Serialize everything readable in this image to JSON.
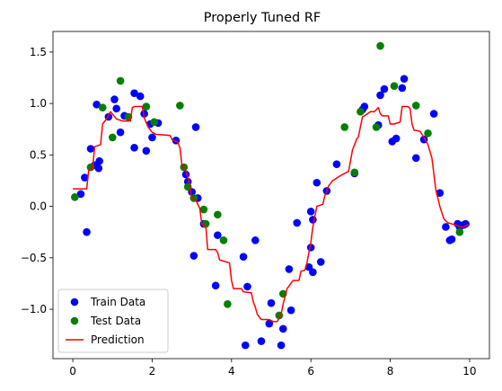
{
  "chart_data": {
    "type": "scatter",
    "title": "Properly Tuned RF",
    "xlabel": "",
    "ylabel": "",
    "xlim": [
      -0.5,
      10.5
    ],
    "ylim": [
      -1.48,
      1.7
    ],
    "xticks": [
      0,
      2,
      4,
      6,
      8,
      10
    ],
    "yticks": [
      -1.0,
      -0.5,
      0.0,
      0.5,
      1.0,
      1.5
    ],
    "xtick_labels": [
      "0",
      "2",
      "4",
      "6",
      "8",
      "10"
    ],
    "ytick_labels": [
      "−1.0",
      "−0.5",
      "0.0",
      "0.5",
      "1.0",
      "1.5"
    ],
    "grid": false,
    "legend_position": "lower-left",
    "series": [
      {
        "name": "Train Data",
        "kind": "scatter",
        "color": "#0000ff",
        "points": [
          [
            0.2,
            0.12
          ],
          [
            0.3,
            0.28
          ],
          [
            0.35,
            -0.25
          ],
          [
            0.45,
            0.56
          ],
          [
            0.55,
            0.4
          ],
          [
            0.6,
            0.99
          ],
          [
            0.65,
            0.37
          ],
          [
            0.67,
            0.44
          ],
          [
            0.9,
            0.87
          ],
          [
            1.05,
            1.04
          ],
          [
            1.1,
            0.95
          ],
          [
            1.2,
            0.72
          ],
          [
            1.3,
            0.88
          ],
          [
            1.55,
            0.57
          ],
          [
            1.55,
            1.1
          ],
          [
            1.7,
            1.07
          ],
          [
            1.8,
            0.9
          ],
          [
            1.85,
            0.54
          ],
          [
            1.95,
            0.8
          ],
          [
            2.0,
            0.67
          ],
          [
            2.15,
            0.81
          ],
          [
            2.6,
            0.64
          ],
          [
            2.85,
            0.31
          ],
          [
            2.9,
            0.24
          ],
          [
            3.0,
            0.14
          ],
          [
            3.05,
            -0.48
          ],
          [
            3.1,
            0.77
          ],
          [
            3.15,
            0.08
          ],
          [
            3.3,
            -0.17
          ],
          [
            3.6,
            -0.77
          ],
          [
            3.65,
            -0.28
          ],
          [
            4.3,
            -0.49
          ],
          [
            4.35,
            -1.35
          ],
          [
            4.4,
            -0.78
          ],
          [
            4.6,
            -0.33
          ],
          [
            4.75,
            -1.31
          ],
          [
            4.95,
            -1.14
          ],
          [
            5.0,
            -0.94
          ],
          [
            5.25,
            -1.35
          ],
          [
            5.3,
            -1.19
          ],
          [
            5.45,
            -0.61
          ],
          [
            5.5,
            -1.01
          ],
          [
            5.65,
            -0.16
          ],
          [
            5.95,
            -0.59
          ],
          [
            6.0,
            -0.05
          ],
          [
            6.0,
            -0.4
          ],
          [
            6.05,
            -0.64
          ],
          [
            6.05,
            -0.13
          ],
          [
            6.15,
            0.23
          ],
          [
            6.25,
            -0.54
          ],
          [
            6.4,
            0.15
          ],
          [
            6.65,
            0.41
          ],
          [
            7.1,
            0.32
          ],
          [
            7.3,
            0.94
          ],
          [
            7.35,
            0.97
          ],
          [
            7.7,
            0.79
          ],
          [
            7.75,
            1.08
          ],
          [
            7.85,
            1.14
          ],
          [
            8.05,
            0.63
          ],
          [
            8.15,
            0.66
          ],
          [
            8.3,
            1.15
          ],
          [
            8.35,
            1.24
          ],
          [
            8.65,
            0.47
          ],
          [
            8.85,
            0.65
          ],
          [
            9.1,
            0.9
          ],
          [
            9.25,
            0.13
          ],
          [
            9.4,
            -0.2
          ],
          [
            9.5,
            -0.33
          ],
          [
            9.55,
            -0.32
          ],
          [
            9.7,
            -0.17
          ],
          [
            9.75,
            -0.2
          ],
          [
            9.85,
            -0.18
          ],
          [
            9.9,
            -0.17
          ]
        ]
      },
      {
        "name": "Test Data",
        "kind": "scatter",
        "color": "#008000",
        "points": [
          [
            0.05,
            0.09
          ],
          [
            0.45,
            0.38
          ],
          [
            0.75,
            0.96
          ],
          [
            1.0,
            0.67
          ],
          [
            1.2,
            1.22
          ],
          [
            1.4,
            0.87
          ],
          [
            1.85,
            0.97
          ],
          [
            2.05,
            0.82
          ],
          [
            2.7,
            0.98
          ],
          [
            2.8,
            0.38
          ],
          [
            2.9,
            0.19
          ],
          [
            3.05,
            0.08
          ],
          [
            3.3,
            -0.03
          ],
          [
            3.35,
            -0.17
          ],
          [
            3.65,
            -0.08
          ],
          [
            3.8,
            -0.33
          ],
          [
            3.9,
            -0.95
          ],
          [
            5.2,
            -1.06
          ],
          [
            5.3,
            -0.85
          ],
          [
            6.85,
            0.77
          ],
          [
            7.1,
            0.33
          ],
          [
            7.25,
            0.92
          ],
          [
            7.65,
            0.77
          ],
          [
            7.75,
            1.56
          ],
          [
            8.1,
            1.17
          ],
          [
            8.65,
            0.98
          ],
          [
            8.95,
            0.71
          ],
          [
            9.75,
            -0.25
          ]
        ]
      },
      {
        "name": "Prediction",
        "kind": "line",
        "color": "#ff0000",
        "points": [
          [
            0.0,
            0.17
          ],
          [
            0.35,
            0.17
          ],
          [
            0.4,
            0.35
          ],
          [
            0.5,
            0.37
          ],
          [
            0.55,
            0.58
          ],
          [
            0.7,
            0.6
          ],
          [
            0.75,
            0.8
          ],
          [
            0.85,
            0.85
          ],
          [
            0.95,
            0.92
          ],
          [
            1.1,
            0.85
          ],
          [
            1.25,
            0.83
          ],
          [
            1.45,
            0.83
          ],
          [
            1.5,
            0.96
          ],
          [
            1.55,
            0.97
          ],
          [
            1.75,
            0.97
          ],
          [
            1.8,
            0.86
          ],
          [
            1.9,
            0.77
          ],
          [
            2.0,
            0.72
          ],
          [
            2.1,
            0.7
          ],
          [
            2.45,
            0.69
          ],
          [
            2.5,
            0.65
          ],
          [
            2.65,
            0.62
          ],
          [
            2.7,
            0.57
          ],
          [
            2.75,
            0.4
          ],
          [
            2.85,
            0.35
          ],
          [
            2.95,
            0.2
          ],
          [
            3.0,
            0.08
          ],
          [
            3.1,
            0.06
          ],
          [
            3.2,
            -0.02
          ],
          [
            3.25,
            -0.17
          ],
          [
            3.35,
            -0.19
          ],
          [
            3.4,
            -0.42
          ],
          [
            3.6,
            -0.42
          ],
          [
            3.65,
            -0.45
          ],
          [
            3.7,
            -0.52
          ],
          [
            3.95,
            -0.55
          ],
          [
            4.0,
            -0.72
          ],
          [
            4.05,
            -0.8
          ],
          [
            4.25,
            -0.8
          ],
          [
            4.3,
            -0.83
          ],
          [
            4.5,
            -0.84
          ],
          [
            4.55,
            -0.93
          ],
          [
            4.6,
            -0.98
          ],
          [
            4.65,
            -1.05
          ],
          [
            4.75,
            -1.1
          ],
          [
            4.95,
            -1.1
          ],
          [
            5.05,
            -1.12
          ],
          [
            5.15,
            -1.12
          ],
          [
            5.25,
            -1.05
          ],
          [
            5.3,
            -0.95
          ],
          [
            5.4,
            -0.8
          ],
          [
            5.55,
            -0.72
          ],
          [
            5.7,
            -0.72
          ],
          [
            5.75,
            -0.63
          ],
          [
            5.85,
            -0.62
          ],
          [
            5.9,
            -0.55
          ],
          [
            6.0,
            -0.35
          ],
          [
            6.05,
            -0.2
          ],
          [
            6.1,
            -0.1
          ],
          [
            6.15,
            0.0
          ],
          [
            6.3,
            0.02
          ],
          [
            6.35,
            0.1
          ],
          [
            6.45,
            0.2
          ],
          [
            6.55,
            0.25
          ],
          [
            6.75,
            0.3
          ],
          [
            6.95,
            0.34
          ],
          [
            7.05,
            0.55
          ],
          [
            7.15,
            0.65
          ],
          [
            7.2,
            0.68
          ],
          [
            7.3,
            0.87
          ],
          [
            7.35,
            0.88
          ],
          [
            7.5,
            0.92
          ],
          [
            7.6,
            0.92
          ],
          [
            7.7,
            0.96
          ],
          [
            7.75,
            0.9
          ],
          [
            7.8,
            0.88
          ],
          [
            7.95,
            0.88
          ],
          [
            8.0,
            0.8
          ],
          [
            8.1,
            0.8
          ],
          [
            8.25,
            0.82
          ],
          [
            8.3,
            0.97
          ],
          [
            8.45,
            0.97
          ],
          [
            8.5,
            0.95
          ],
          [
            8.55,
            0.8
          ],
          [
            8.6,
            0.74
          ],
          [
            8.75,
            0.73
          ],
          [
            8.85,
            0.67
          ],
          [
            8.95,
            0.6
          ],
          [
            9.05,
            0.47
          ],
          [
            9.15,
            0.16
          ],
          [
            9.25,
            0.0
          ],
          [
            9.35,
            -0.12
          ],
          [
            9.45,
            -0.16
          ],
          [
            9.55,
            -0.17
          ],
          [
            9.65,
            -0.18
          ],
          [
            9.75,
            -0.2
          ],
          [
            9.85,
            -0.2
          ],
          [
            9.95,
            -0.18
          ],
          [
            10.0,
            -0.18
          ]
        ]
      }
    ]
  }
}
